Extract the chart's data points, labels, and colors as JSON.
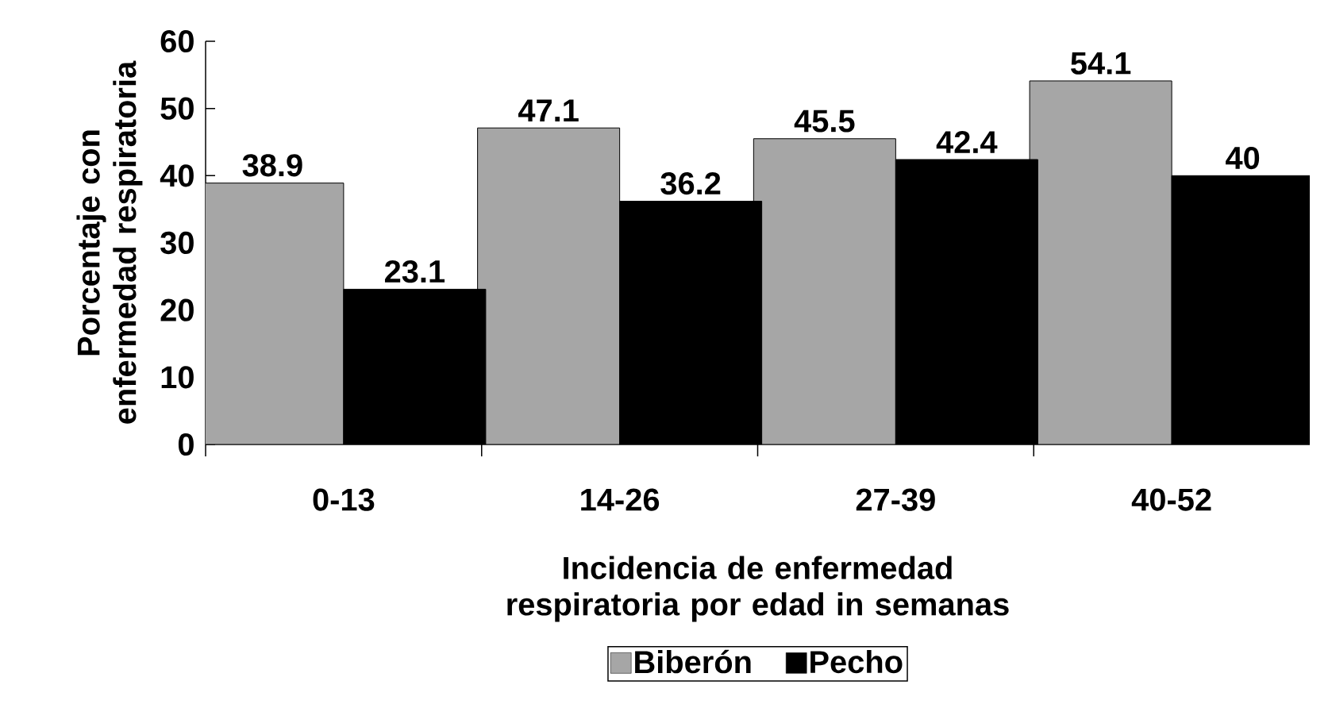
{
  "chart_data": {
    "type": "bar",
    "xlabel": "Incidencia de enfermedad respiratoria por edad in semanas",
    "ylabel": "Porcentaje con enfermedad respiratoria",
    "categories": [
      "0-13",
      "14-26",
      "27-39",
      "40-52"
    ],
    "series": [
      {
        "name": "Biberón",
        "color": "#a6a6a6",
        "values": [
          38.9,
          47.1,
          45.5,
          54.1
        ]
      },
      {
        "name": "Pecho",
        "color": "#000000",
        "values": [
          23.1,
          36.2,
          42.4,
          40
        ]
      }
    ],
    "ylim": [
      0,
      60
    ],
    "yticks": [
      0,
      10,
      20,
      30,
      40,
      50,
      60
    ],
    "data_labels": true,
    "legend": "bottom",
    "grid": false
  }
}
